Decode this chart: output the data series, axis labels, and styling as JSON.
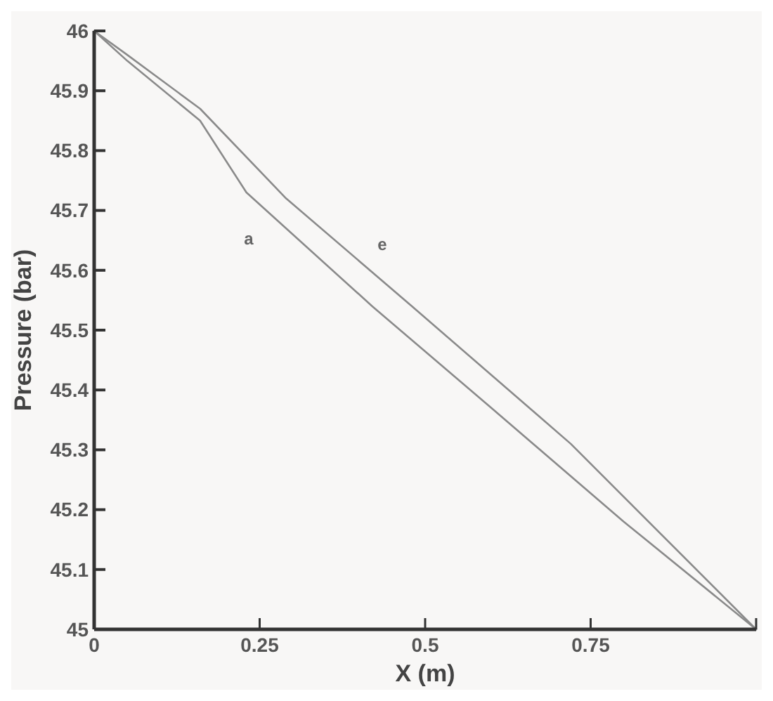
{
  "chart_data": {
    "type": "line",
    "xlabel": "X (m)",
    "ylabel": "Pressure (bar)",
    "xlim": [
      0,
      1
    ],
    "xticks": [
      0,
      0.25,
      0.5,
      0.75,
      {
        "value": 1,
        "label": null
      }
    ],
    "ylim": [
      45,
      46
    ],
    "yticks": [
      45,
      45.1,
      45.2,
      45.3,
      45.4,
      45.5,
      45.6,
      45.7,
      45.8,
      45.9,
      46
    ],
    "series": [
      {
        "color": "#8a8a8a",
        "x": [
          0,
          0.05,
          0.16,
          0.23,
          0.42,
          0.6,
          0.8,
          1
        ],
        "values": [
          46,
          45.95,
          45.85,
          45.73,
          45.54,
          45.37,
          45.18,
          45
        ]
      },
      {
        "color": "#8a8a8a",
        "x": [
          0,
          0.05,
          0.16,
          0.29,
          0.48,
          0.72,
          1
        ],
        "values": [
          46,
          45.96,
          45.87,
          45.72,
          45.54,
          45.31,
          45
        ]
      }
    ],
    "annotations": [
      "a",
      "e"
    ],
    "grid": false,
    "line_style": "solid",
    "marker": "none"
  }
}
